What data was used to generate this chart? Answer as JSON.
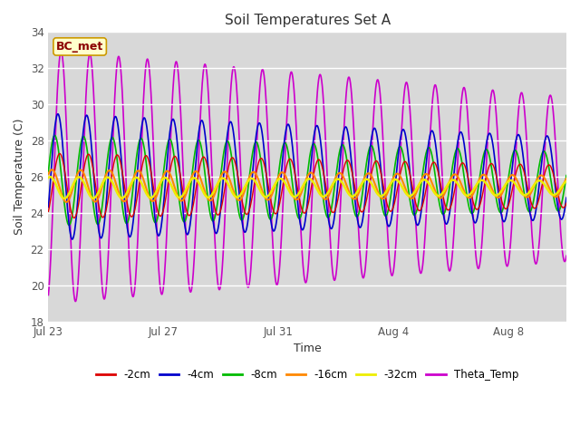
{
  "title": "Soil Temperatures Set A",
  "xlabel": "Time",
  "ylabel": "Soil Temperature (C)",
  "ylim": [
    18,
    34
  ],
  "yticks": [
    18,
    20,
    22,
    24,
    26,
    28,
    30,
    32,
    34
  ],
  "xtick_labels": [
    "Jul 23",
    "Jul 27",
    "Jul 31",
    "Aug 4",
    "Aug 8"
  ],
  "annotation": "BC_met",
  "bg_color": "#d8d8d8",
  "fig_color": "#ffffff",
  "series": {
    "2cm": {
      "color": "#dd0000",
      "lw": 1.0
    },
    "4cm": {
      "color": "#0000cc",
      "lw": 1.2
    },
    "8cm": {
      "color": "#00bb00",
      "lw": 1.2
    },
    "16cm": {
      "color": "#ff8800",
      "lw": 1.5
    },
    "32cm": {
      "color": "#eeee00",
      "lw": 1.8
    },
    "theta": {
      "color": "#cc00cc",
      "lw": 1.2
    }
  },
  "legend": [
    {
      "label": "-2cm",
      "color": "#dd0000"
    },
    {
      "label": "-4cm",
      "color": "#0000cc"
    },
    {
      "label": "-8cm",
      "color": "#00bb00"
    },
    {
      "label": "-16cm",
      "color": "#ff8800"
    },
    {
      "label": "-32cm",
      "color": "#eeee00"
    },
    {
      "label": "Theta_Temp",
      "color": "#cc00cc"
    }
  ],
  "xlim": [
    0,
    18
  ],
  "xtick_positions": [
    0,
    4,
    8,
    12,
    16
  ]
}
